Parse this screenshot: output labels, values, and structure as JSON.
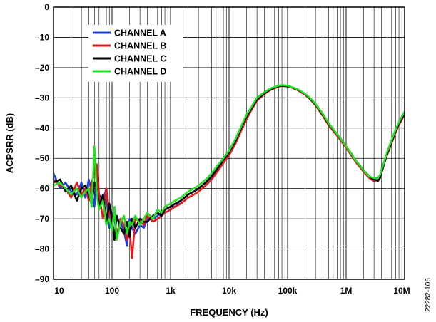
{
  "chart_data": {
    "type": "line",
    "xlabel": "FREQUENCY (Hz)",
    "ylabel": "ACPSRR (dB)",
    "x_scale": "log",
    "xlim": [
      10,
      10000000
    ],
    "ylim": [
      -90,
      0
    ],
    "x_ticks": [
      10,
      100,
      1000,
      10000,
      100000,
      1000000,
      10000000
    ],
    "x_tick_labels": [
      "10",
      "100",
      "1k",
      "10k",
      "100k",
      "1M",
      "10M"
    ],
    "y_ticks": [
      0,
      -10,
      -20,
      -30,
      -40,
      -50,
      -60,
      -70,
      -80,
      -90
    ],
    "y_tick_labels": [
      "0",
      "–10",
      "–20",
      "–30",
      "–40",
      "–50",
      "–60",
      "–70",
      "–80",
      "–90"
    ],
    "grid": true,
    "legend_position": "top-left",
    "figure_id": "22282-106",
    "series": [
      {
        "name": "CHANNEL  A",
        "color": "#1f3fe0",
        "x": [
          10,
          13,
          16,
          20,
          25,
          30,
          35,
          40,
          45,
          50,
          55,
          60,
          70,
          80,
          90,
          100,
          110,
          120,
          140,
          160,
          180,
          200,
          220,
          250,
          300,
          350,
          400,
          500,
          600,
          700,
          800,
          1000,
          1200,
          1500,
          2000,
          2500,
          3000,
          4000,
          5000,
          6000,
          8000,
          10000,
          13000,
          16000,
          20000,
          25000,
          30000,
          40000,
          50000,
          60000,
          70000,
          80000,
          100000,
          120000,
          150000,
          200000,
          250000,
          300000,
          400000,
          500000,
          700000,
          1000000,
          1500000,
          2000000,
          2500000,
          3000000,
          3500000,
          3800000,
          4000000,
          4500000,
          5000000,
          6000000,
          7000000,
          8000000,
          10000000
        ],
        "y": [
          -55,
          -60,
          -58,
          -61,
          -62,
          -58,
          -63,
          -57,
          -61,
          -66,
          -56,
          -62,
          -64,
          -60,
          -73,
          -68,
          -70,
          -75,
          -71,
          -74,
          -79,
          -70,
          -73,
          -75,
          -72,
          -73,
          -70,
          -70,
          -69,
          -68,
          -67,
          -66,
          -66,
          -64,
          -62,
          -61,
          -60,
          -58,
          -56,
          -54,
          -50.5,
          -48,
          -44,
          -40,
          -36,
          -33,
          -30.5,
          -28.5,
          -27.3,
          -26.6,
          -26.2,
          -26,
          -26.2,
          -26.6,
          -27.3,
          -28.8,
          -30.5,
          -32.2,
          -35.5,
          -38.5,
          -42,
          -46,
          -51,
          -54,
          -56,
          -57,
          -56.5,
          -55.5,
          -54,
          -51,
          -48.5,
          -44.5,
          -41,
          -38.5,
          -35
        ]
      },
      {
        "name": "CHANNEL  B",
        "color": "#e01a1a",
        "x": [
          10,
          13,
          16,
          20,
          25,
          30,
          35,
          40,
          45,
          50,
          55,
          60,
          70,
          80,
          90,
          100,
          110,
          120,
          140,
          160,
          180,
          200,
          220,
          250,
          300,
          350,
          400,
          500,
          600,
          700,
          800,
          1000,
          1200,
          1500,
          2000,
          2500,
          3000,
          4000,
          5000,
          6000,
          8000,
          10000,
          13000,
          16000,
          20000,
          25000,
          30000,
          40000,
          50000,
          60000,
          70000,
          80000,
          100000,
          120000,
          150000,
          200000,
          250000,
          300000,
          400000,
          500000,
          700000,
          1000000,
          1500000,
          2000000,
          2500000,
          3000000,
          3500000,
          3800000,
          4000000,
          4500000,
          5000000,
          6000000,
          7000000,
          8000000,
          10000000
        ],
        "y": [
          -57,
          -59,
          -60,
          -63,
          -58,
          -62,
          -60,
          -64,
          -58,
          -55,
          -52,
          -62,
          -70,
          -60,
          -68,
          -72,
          -67,
          -76,
          -70,
          -72,
          -77,
          -74,
          -83,
          -70,
          -71,
          -72,
          -69,
          -71,
          -70,
          -69,
          -68,
          -67,
          -66,
          -65,
          -63,
          -62,
          -61,
          -59,
          -57,
          -55,
          -51.5,
          -49,
          -45,
          -41,
          -37,
          -33.5,
          -31,
          -28.8,
          -27.5,
          -26.8,
          -26.3,
          -26.1,
          -26.2,
          -26.7,
          -27.5,
          -29,
          -30.7,
          -32.5,
          -36,
          -39,
          -42.5,
          -46.5,
          -51.5,
          -54.5,
          -56.5,
          -57.5,
          -57,
          -56,
          -54.5,
          -51.5,
          -49,
          -45,
          -41.5,
          -39,
          -35.5
        ]
      },
      {
        "name": "CHANNEL  C",
        "color": "#000000",
        "x": [
          10,
          13,
          16,
          20,
          25,
          30,
          35,
          40,
          45,
          50,
          55,
          60,
          70,
          80,
          90,
          100,
          110,
          120,
          140,
          160,
          180,
          200,
          220,
          250,
          300,
          350,
          400,
          500,
          600,
          700,
          800,
          1000,
          1200,
          1500,
          2000,
          2500,
          3000,
          4000,
          5000,
          6000,
          8000,
          10000,
          13000,
          16000,
          20000,
          25000,
          30000,
          40000,
          50000,
          60000,
          70000,
          80000,
          100000,
          120000,
          150000,
          200000,
          250000,
          300000,
          400000,
          500000,
          700000,
          1000000,
          1500000,
          2000000,
          2500000,
          3000000,
          3500000,
          3800000,
          4000000,
          4500000,
          5000000,
          6000000,
          7000000,
          8000000,
          10000000
        ],
        "y": [
          -58,
          -57,
          -61,
          -59,
          -64,
          -60,
          -59,
          -62,
          -65,
          -58,
          -60,
          -66,
          -62,
          -71,
          -65,
          -70,
          -77,
          -69,
          -73,
          -75,
          -71,
          -76,
          -70,
          -73,
          -70,
          -71,
          -71,
          -69,
          -68,
          -69,
          -67,
          -66,
          -65,
          -64,
          -62,
          -61,
          -60,
          -58,
          -56,
          -54,
          -50.5,
          -48,
          -44,
          -40,
          -36,
          -33,
          -30.5,
          -28.5,
          -27.3,
          -26.6,
          -26.2,
          -26,
          -26.2,
          -26.6,
          -27.3,
          -28.8,
          -30.5,
          -32.2,
          -35.5,
          -38.5,
          -42,
          -46,
          -51,
          -54,
          -56,
          -57,
          -57.5,
          -56.5,
          -55,
          -51.5,
          -48.5,
          -44.5,
          -41,
          -38.5,
          -35
        ]
      },
      {
        "name": "CHANNEL  D",
        "color": "#22e022",
        "x": [
          10,
          13,
          16,
          20,
          25,
          30,
          35,
          40,
          45,
          50,
          55,
          60,
          70,
          80,
          90,
          100,
          110,
          120,
          140,
          160,
          180,
          200,
          220,
          250,
          300,
          350,
          400,
          500,
          600,
          700,
          800,
          1000,
          1200,
          1500,
          2000,
          2500,
          3000,
          4000,
          5000,
          6000,
          8000,
          10000,
          13000,
          16000,
          20000,
          25000,
          30000,
          40000,
          50000,
          60000,
          70000,
          80000,
          100000,
          120000,
          150000,
          200000,
          250000,
          300000,
          400000,
          500000,
          700000,
          1000000,
          1500000,
          2000000,
          2500000,
          3000000,
          3500000,
          3800000,
          4000000,
          4500000,
          5000000,
          6000000,
          7000000,
          8000000,
          10000000
        ],
        "y": [
          -59,
          -58,
          -60,
          -62,
          -60,
          -63,
          -61,
          -60,
          -66,
          -46,
          -62,
          -67,
          -64,
          -72,
          -70,
          -74,
          -66,
          -77,
          -71,
          -69,
          -75,
          -71,
          -72,
          -69,
          -72,
          -70,
          -68,
          -70,
          -67,
          -68,
          -66,
          -65,
          -64,
          -63,
          -61,
          -60,
          -59,
          -57,
          -55,
          -53,
          -50,
          -47.5,
          -43.5,
          -39.5,
          -35.5,
          -32.5,
          -30,
          -28.2,
          -27,
          -26.4,
          -26,
          -25.8,
          -26,
          -26.5,
          -27.2,
          -28.7,
          -30.3,
          -32,
          -35.3,
          -38.3,
          -42,
          -46,
          -51,
          -54,
          -56,
          -56.5,
          -56.5,
          -55.5,
          -54,
          -51,
          -48,
          -44,
          -40.5,
          -38,
          -34.5
        ]
      }
    ]
  }
}
